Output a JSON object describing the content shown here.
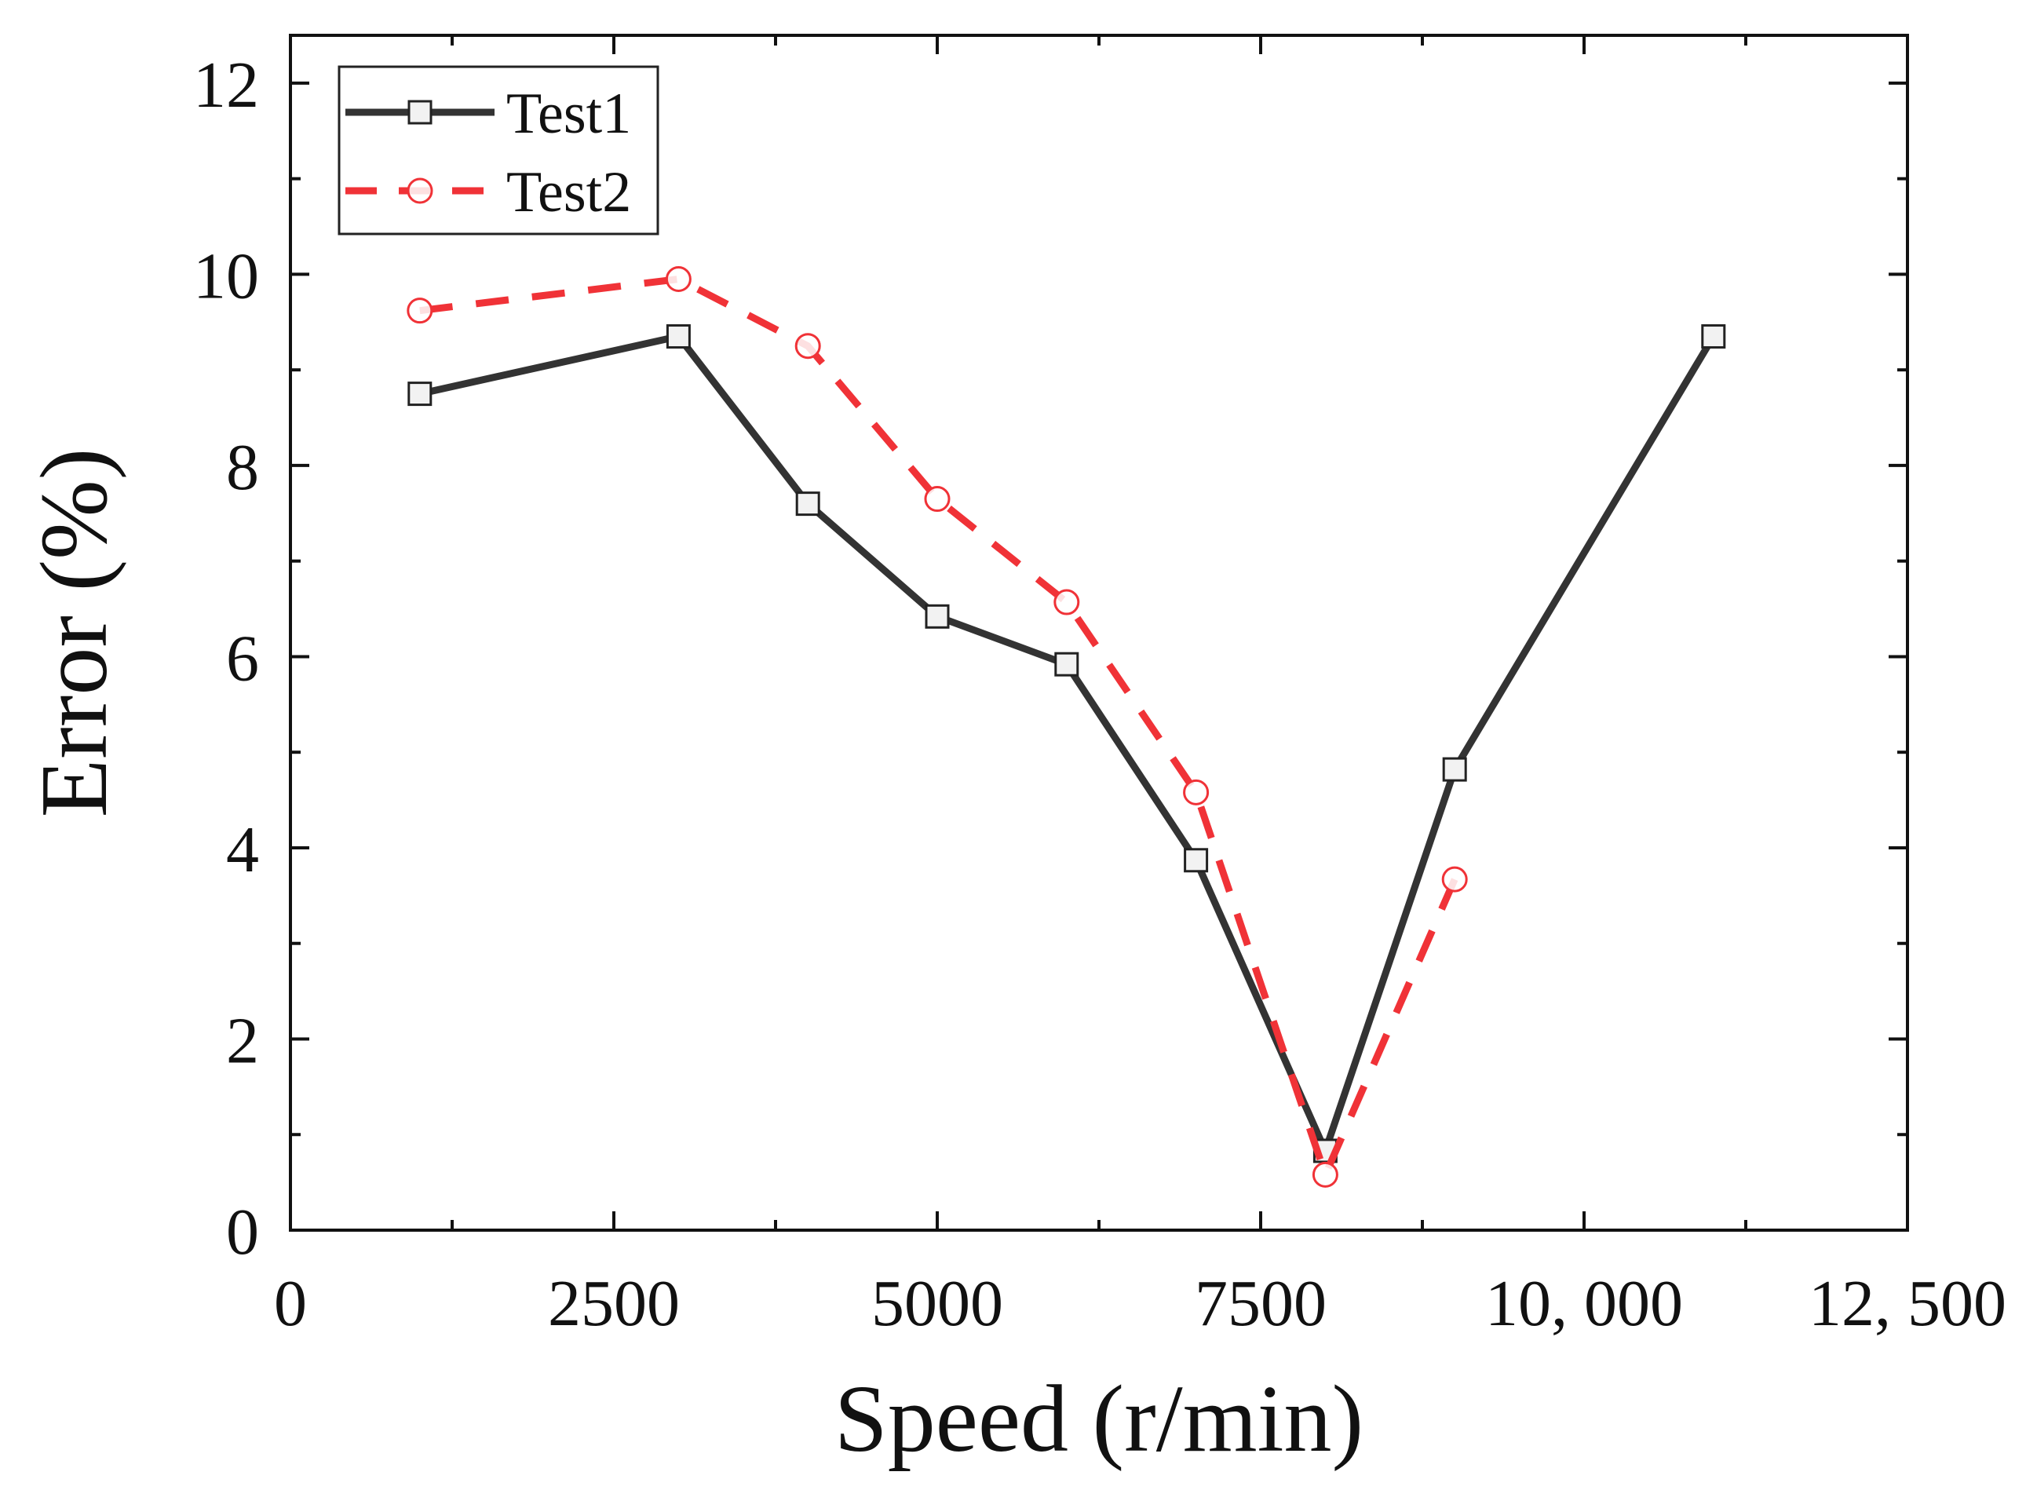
{
  "chart_data": {
    "type": "line",
    "title": "",
    "xlabel": "Speed (r/min)",
    "ylabel": "Error (%)",
    "xlim": [
      0,
      12500
    ],
    "ylim": [
      0,
      12.5
    ],
    "x_ticks": [
      0,
      2500,
      5000,
      7500,
      10000,
      12500
    ],
    "x_tick_labels": [
      "0",
      "2500",
      "5000",
      "7500",
      "10, 000",
      "12, 500"
    ],
    "y_ticks": [
      0,
      2,
      4,
      6,
      8,
      10,
      12
    ],
    "y_tick_labels": [
      "0",
      "2",
      "4",
      "6",
      "8",
      "10",
      "12"
    ],
    "grid": false,
    "legend_position": "top-left",
    "series": [
      {
        "name": "Test1",
        "color": "#333333",
        "line_style": "solid",
        "marker": "square",
        "x": [
          1000,
          3000,
          4000,
          5000,
          6000,
          7000,
          8000,
          9000,
          11000
        ],
        "values": [
          8.75,
          9.35,
          7.6,
          6.42,
          5.92,
          3.87,
          0.83,
          4.82,
          9.35
        ]
      },
      {
        "name": "Test2",
        "color": "#f03237",
        "line_style": "dashed",
        "marker": "circle",
        "x": [
          1000,
          3000,
          4000,
          5000,
          6000,
          7000,
          8000,
          9000
        ],
        "values": [
          9.62,
          9.95,
          9.25,
          7.65,
          6.57,
          4.58,
          0.58,
          3.67
        ]
      }
    ]
  }
}
